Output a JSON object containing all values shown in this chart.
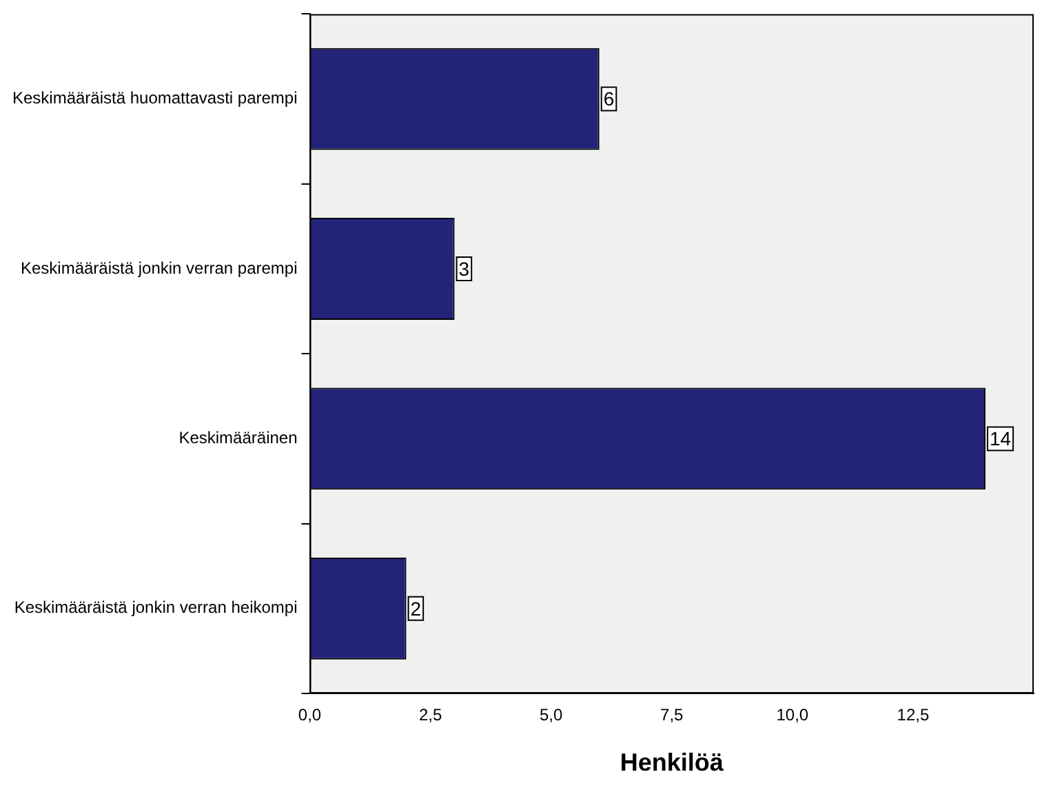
{
  "chart_data": {
    "type": "bar",
    "orientation": "horizontal",
    "xlabel": "Henkilöä",
    "categories": [
      "Keskimääräistä huomattavasti parempi",
      "Keskimääräistä jonkin verran parempi",
      "Keskimääräinen",
      "Keskimääräistä jonkin verran heikompi"
    ],
    "values": [
      6,
      3,
      14,
      2
    ],
    "color": "#23237a",
    "data_labels": true,
    "grid": false,
    "legend": false,
    "xlim": [
      0,
      15
    ],
    "xticks": [
      {
        "value": 0,
        "label": "0,0"
      },
      {
        "value": 2.5,
        "label": "2,5"
      },
      {
        "value": 5,
        "label": "5,0"
      },
      {
        "value": 7.5,
        "label": "7,5"
      },
      {
        "value": 10,
        "label": "10,0"
      },
      {
        "value": 12.5,
        "label": "12,5"
      }
    ]
  }
}
